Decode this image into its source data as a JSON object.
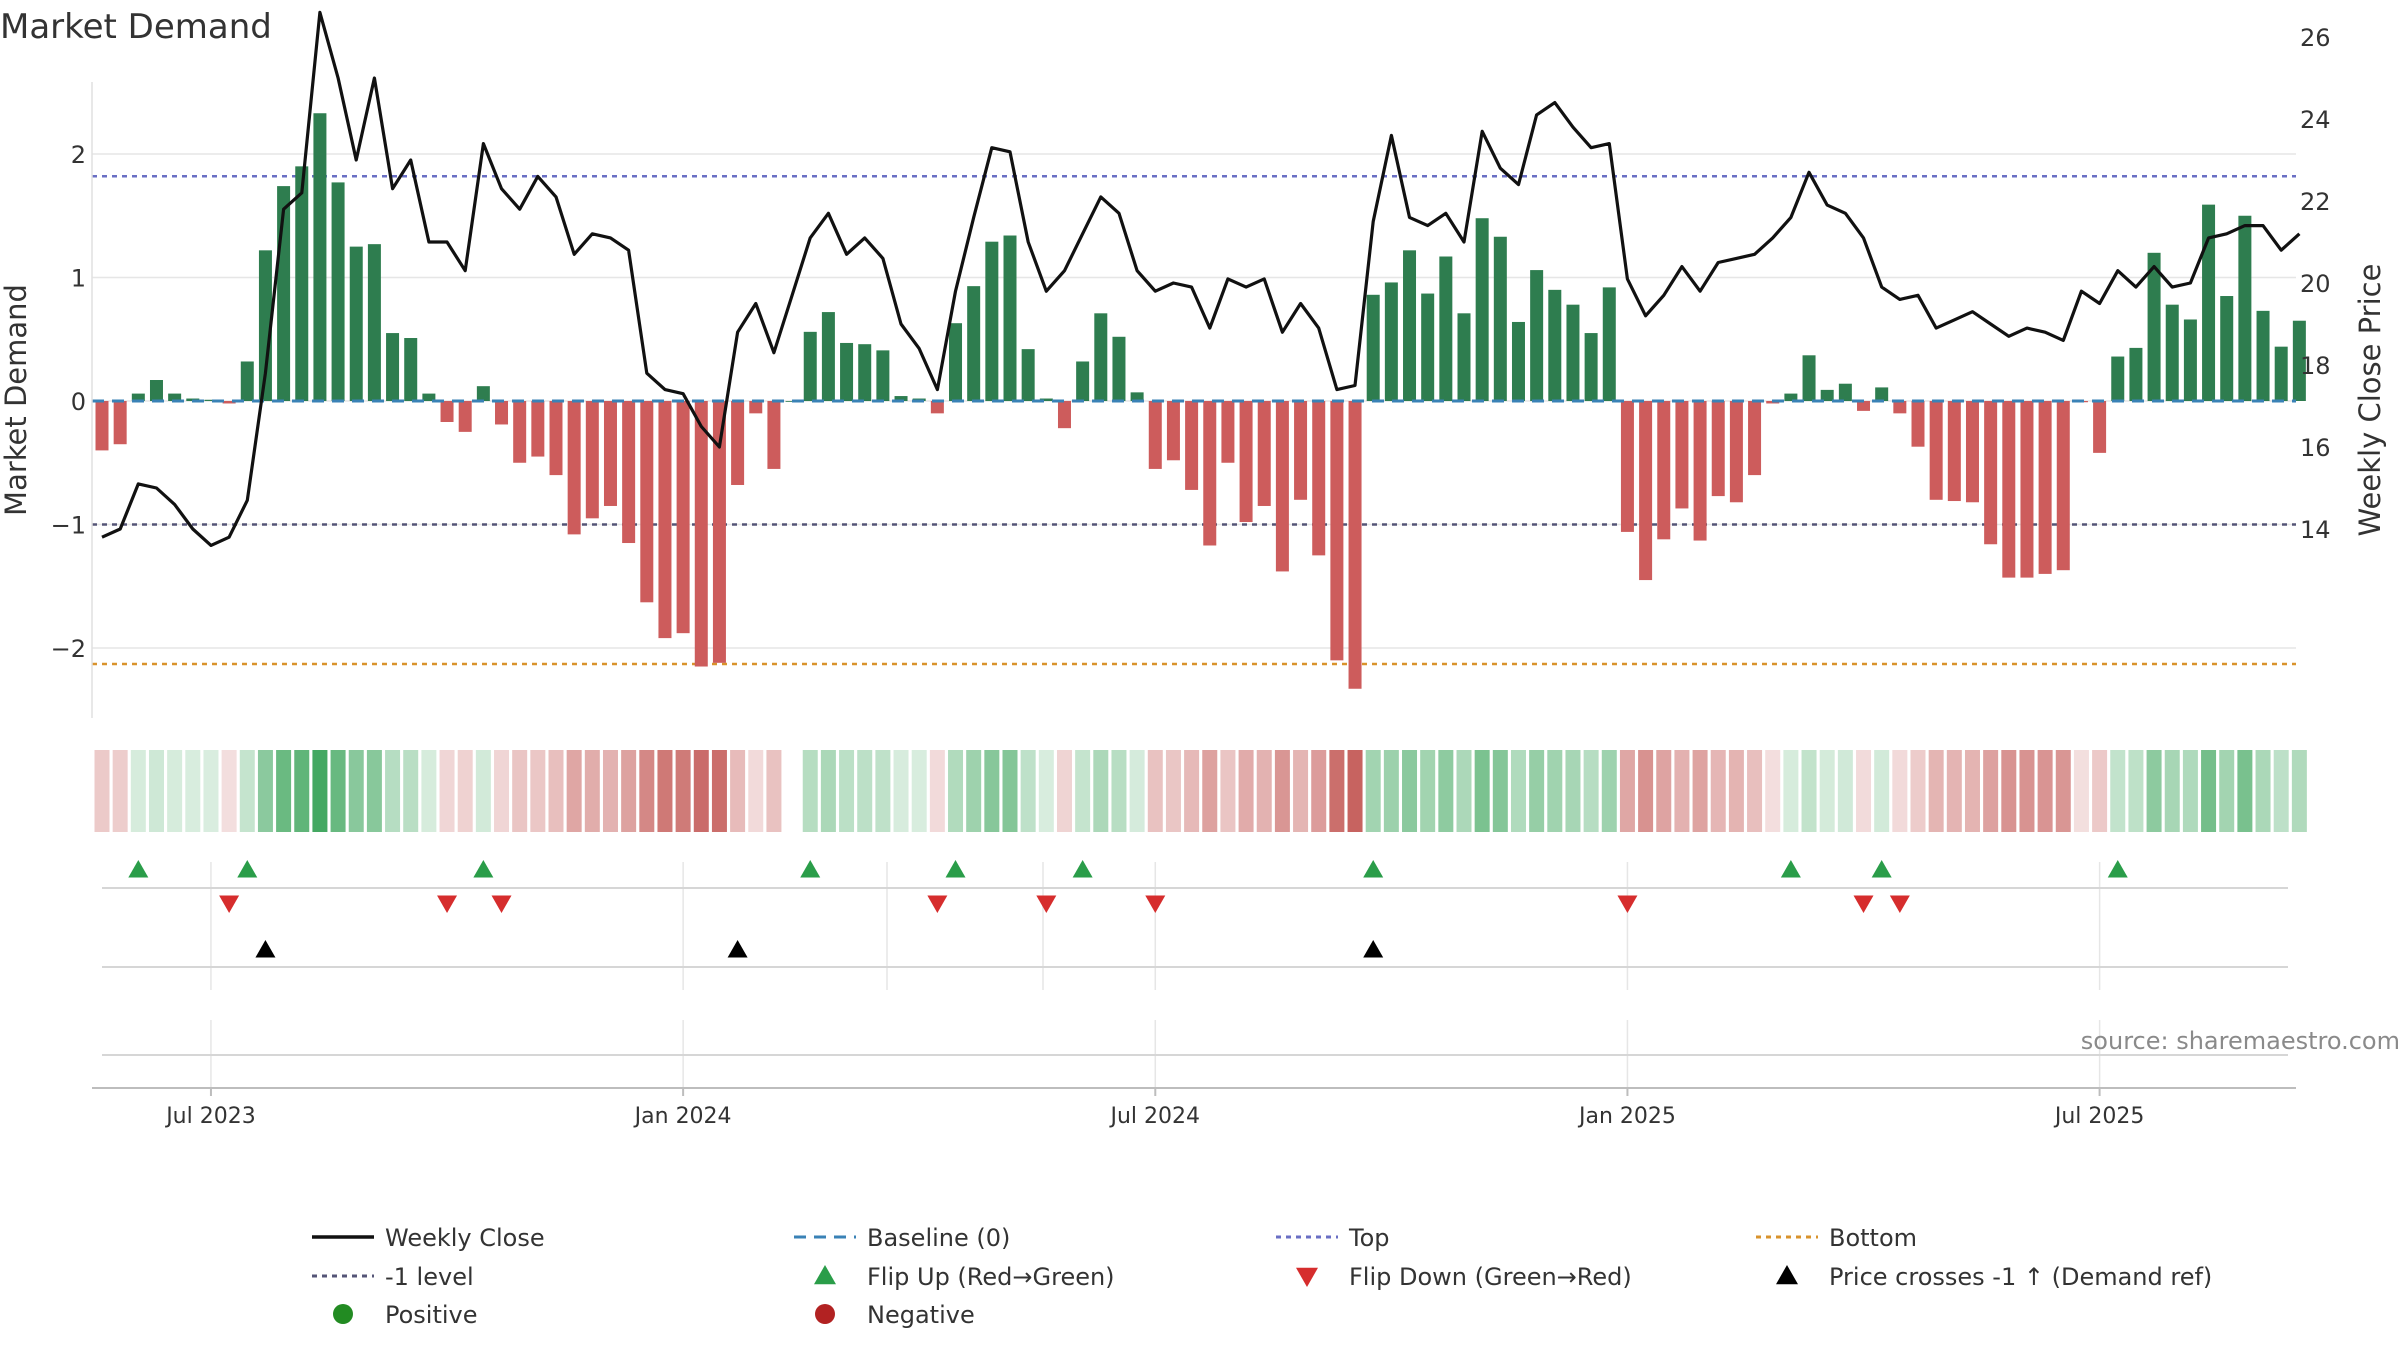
{
  "chart_data": {
    "type": "bar",
    "title": "Market Demand",
    "ylabel": "Market Demand",
    "y2label": "Weekly Close Price",
    "ylim": [
      -2.6,
      2.6
    ],
    "y2lim": [
      13.0,
      26.8
    ],
    "yticks": [
      {
        "value": 2,
        "label": "2"
      },
      {
        "value": 1,
        "label": "1"
      },
      {
        "value": 0,
        "label": "0"
      },
      {
        "value": -1,
        "label": "−1"
      },
      {
        "value": -2,
        "label": "−2"
      }
    ],
    "y2ticks": [
      {
        "value": 26,
        "label": "26"
      },
      {
        "value": 24,
        "label": "24"
      },
      {
        "value": 22,
        "label": "22"
      },
      {
        "value": 20,
        "label": "20"
      },
      {
        "value": 18,
        "label": "18"
      },
      {
        "value": 16,
        "label": "16"
      },
      {
        "value": 14,
        "label": "14"
      }
    ],
    "xticks": [
      {
        "week": 6,
        "label": "Jul 2023"
      },
      {
        "week": 32,
        "label": "Jan 2024"
      },
      {
        "week": 58,
        "label": "Jul 2024"
      },
      {
        "week": 84,
        "label": "Jan 2025"
      },
      {
        "week": 110,
        "label": "Jul 2025"
      }
    ],
    "reference_lines": {
      "top": 1.82,
      "bottom": -2.13,
      "minus_one": -1,
      "baseline": 0
    },
    "demand": [
      -0.4,
      -0.35,
      0.06,
      0.17,
      0.06,
      0.02,
      0.01,
      -0.02,
      0.32,
      1.22,
      1.74,
      1.9,
      2.33,
      1.77,
      1.25,
      1.27,
      0.55,
      0.51,
      0.06,
      -0.17,
      -0.25,
      0.12,
      -0.19,
      -0.5,
      -0.45,
      -0.6,
      -1.08,
      -0.95,
      -0.85,
      -1.15,
      -1.63,
      -1.92,
      -1.88,
      -2.15,
      -2.12,
      -0.68,
      -0.1,
      -0.55,
      0.0,
      0.56,
      0.72,
      0.47,
      0.46,
      0.41,
      0.04,
      0.02,
      -0.1,
      0.63,
      0.93,
      1.29,
      1.34,
      0.42,
      0.02,
      -0.22,
      0.32,
      0.71,
      0.52,
      0.07,
      -0.55,
      -0.48,
      -0.72,
      -1.17,
      -0.5,
      -0.98,
      -0.85,
      -1.38,
      -0.8,
      -1.25,
      -2.1,
      -2.33,
      0.86,
      0.96,
      1.22,
      0.87,
      1.17,
      0.71,
      1.48,
      1.33,
      0.64,
      1.06,
      0.9,
      0.78,
      0.55,
      0.92,
      -1.06,
      -1.45,
      -1.12,
      -0.87,
      -1.13,
      -0.77,
      -0.82,
      -0.6,
      -0.02,
      0.06,
      0.37,
      0.09,
      0.14,
      -0.08,
      0.11,
      -0.1,
      -0.37,
      -0.8,
      -0.81,
      -0.82,
      -1.16,
      -1.43,
      -1.43,
      -1.4,
      -1.37,
      -0.01,
      -0.42,
      0.36,
      0.43,
      1.2,
      0.78,
      0.66,
      1.59,
      0.85,
      1.5,
      0.73,
      0.44,
      0.65
    ],
    "weekly_close": [
      13.8,
      14.0,
      15.1,
      15.0,
      14.6,
      14.0,
      13.6,
      13.8,
      14.7,
      17.8,
      21.8,
      22.2,
      26.6,
      25.0,
      23.0,
      25.0,
      22.3,
      23.0,
      21.0,
      21.0,
      20.3,
      23.4,
      22.3,
      21.8,
      22.6,
      22.1,
      20.7,
      21.2,
      21.1,
      20.8,
      17.8,
      17.4,
      17.3,
      16.5,
      16.0,
      18.8,
      19.5,
      18.3,
      19.7,
      21.1,
      21.7,
      20.7,
      21.1,
      20.6,
      19.0,
      18.4,
      17.4,
      19.8,
      21.6,
      23.3,
      23.2,
      21.0,
      19.8,
      20.3,
      21.2,
      22.1,
      21.7,
      20.3,
      19.8,
      20.0,
      19.9,
      18.9,
      20.1,
      19.9,
      20.1,
      18.8,
      19.5,
      18.9,
      17.4,
      17.5,
      21.5,
      23.6,
      21.6,
      21.4,
      21.7,
      21.0,
      23.7,
      22.8,
      22.4,
      24.1,
      24.4,
      23.8,
      23.3,
      23.4,
      20.1,
      19.2,
      19.7,
      20.4,
      19.8,
      20.5,
      20.6,
      20.7,
      21.1,
      21.6,
      22.7,
      21.9,
      21.7,
      21.1,
      19.9,
      19.6,
      19.7,
      18.9,
      19.1,
      19.3,
      19.0,
      18.7,
      18.9,
      18.8,
      18.6,
      19.8,
      19.5,
      20.3,
      19.9,
      20.4,
      19.9,
      20.0,
      21.1,
      21.2,
      21.4,
      21.4,
      20.8,
      21.2
    ],
    "markers": {
      "flip_up": [
        2,
        8,
        21,
        39,
        47,
        54,
        70,
        93,
        98,
        111
      ],
      "flip_down": [
        7,
        19,
        22,
        46,
        52,
        58,
        84,
        97,
        99
      ],
      "price_cross": [
        9,
        35,
        70
      ]
    },
    "source": "source: sharemaestro.com",
    "legend": [
      {
        "key": "weekly-close",
        "label": "Weekly Close"
      },
      {
        "key": "baseline",
        "label": "Baseline (0)"
      },
      {
        "key": "top",
        "label": "Top"
      },
      {
        "key": "bottom",
        "label": "Bottom"
      },
      {
        "key": "minus-one",
        "label": "-1 level"
      },
      {
        "key": "flip-up",
        "label": "Flip Up (Red→Green)"
      },
      {
        "key": "flip-down",
        "label": "Flip Down (Green→Red)"
      },
      {
        "key": "price-cross",
        "label": "Price crosses -1 ↑ (Demand ref)"
      },
      {
        "key": "positive",
        "label": "Positive"
      },
      {
        "key": "negative",
        "label": "Negative"
      }
    ]
  },
  "colors": {
    "positive": "#2e7d4f",
    "negative": "#cd5c5c",
    "close": "#111111",
    "baseline": "#3a82b6",
    "top": "#6a6fc4",
    "bottom": "#d9932c",
    "minus_one": "#555577",
    "flip_up": "#2a9d49",
    "flip_down": "#d62d2d",
    "price_cross": "#000000",
    "legend_positive": "#228b22",
    "legend_negative": "#b22222",
    "grid": "#e6e6e6",
    "axis": "#bdbdbd"
  }
}
